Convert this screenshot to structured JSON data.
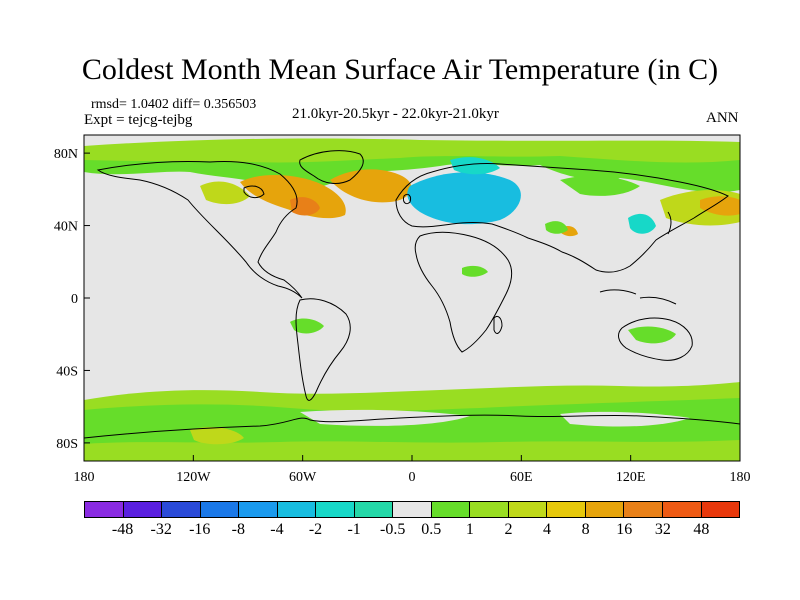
{
  "title": "Coldest Month Mean Surface Air Temperature (in C)",
  "stats": "rmsd= 1.0402 diff= 0.356503",
  "experiment": "Expt = tejcg-tejbg",
  "period": "21.0kyr-20.5kyr - 22.0kyr-21.0kyr",
  "season": "ANN",
  "axes": {
    "x_ticks": [
      "180",
      "120W",
      "60W",
      "0",
      "60E",
      "120E",
      "180"
    ],
    "y_ticks": [
      "80N",
      "40N",
      "0",
      "40S",
      "80S"
    ],
    "x_values": [
      -180,
      -120,
      -60,
      0,
      60,
      120,
      180
    ],
    "y_values": [
      80,
      40,
      0,
      -40,
      -80
    ],
    "lon_range": [
      -180,
      180
    ],
    "lat_range": [
      -90,
      90
    ]
  },
  "colorbar": {
    "colors": [
      "#8a2be2",
      "#5a1fe0",
      "#2a4ad8",
      "#1a78e8",
      "#1a9aee",
      "#18bde0",
      "#17d8c8",
      "#24d8a8",
      "#e6e6e6",
      "#66dd2a",
      "#99dd22",
      "#bfd81a",
      "#e6c80c",
      "#e6a40c",
      "#e88018",
      "#ee5a14",
      "#e8380c"
    ],
    "labels": [
      "-48",
      "-32",
      "-16",
      "-8",
      "-4",
      "-2",
      "-1",
      "-0.5",
      "0.5",
      "1",
      "2",
      "4",
      "8",
      "16",
      "32",
      "48"
    ]
  },
  "colors": {
    "neutral": "#e6e6e6",
    "green": "#66dd2a",
    "yellow_green": "#99dd22",
    "olive": "#bfd81a",
    "orange": "#e6a40c",
    "dark_orange": "#e88018",
    "cyan": "#18bde0",
    "teal": "#17d8c8",
    "coastline": "#000000"
  }
}
